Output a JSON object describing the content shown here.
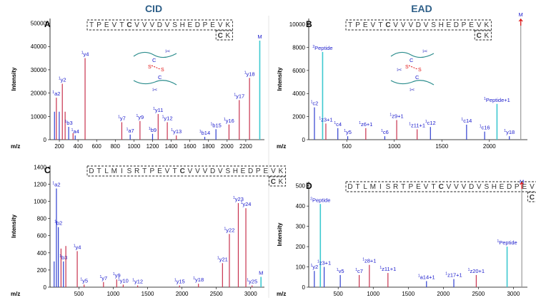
{
  "column_titles": {
    "left": "CID",
    "right": "EAD"
  },
  "colors": {
    "b_ion": "#2f3fd0",
    "y_ion": "#c8324e",
    "precursor": "#3ec9d0",
    "other": "#9a9a9a",
    "cys": "#e06a10",
    "label": "#1a1acc",
    "arrow": "#e01010"
  },
  "chart_data": [
    {
      "panel": "A",
      "type": "bar",
      "title": "",
      "sequence": "TPEVTCVVVDVSHEDPEVK",
      "second_sequence": "CK",
      "xlabel": "m/z",
      "ylabel": "Intensity",
      "xlim": [
        100,
        2400
      ],
      "ylim": [
        0,
        52000
      ],
      "xticks": [
        200,
        400,
        600,
        800,
        1000,
        1200,
        1400,
        1600,
        1800,
        2000,
        2200
      ],
      "yticks": [
        0,
        10000,
        20000,
        30000,
        40000,
        50000
      ],
      "peaks": [
        {
          "mz": 148,
          "intensity": 12000,
          "ion": "b"
        },
        {
          "mz": 168,
          "intensity": 18000,
          "ion": "y",
          "label": "a2",
          "charge": "1"
        },
        {
          "mz": 199,
          "intensity": 12000,
          "ion": "b"
        },
        {
          "mz": 232,
          "intensity": 24000,
          "ion": "y",
          "label": "y2",
          "charge": "1"
        },
        {
          "mz": 262,
          "intensity": 12000,
          "ion": "y"
        },
        {
          "mz": 300,
          "intensity": 5500,
          "ion": "b",
          "label": "b3",
          "charge": "1"
        },
        {
          "mz": 347,
          "intensity": 2800,
          "ion": "y"
        },
        {
          "mz": 370,
          "intensity": 1800,
          "ion": "b",
          "label": "a4",
          "charge": "1"
        },
        {
          "mz": 476,
          "intensity": 35000,
          "ion": "y",
          "label": "y4",
          "charge": "1"
        },
        {
          "mz": 870,
          "intensity": 7500,
          "ion": "y",
          "label": "y7",
          "charge": "1"
        },
        {
          "mz": 960,
          "intensity": 2200,
          "ion": "b",
          "label": "a7",
          "charge": "1"
        },
        {
          "mz": 1065,
          "intensity": 8000,
          "ion": "y",
          "label": "y9",
          "charge": "1"
        },
        {
          "mz": 1200,
          "intensity": 2500,
          "ion": "b",
          "label": "b9",
          "charge": "1"
        },
        {
          "mz": 1260,
          "intensity": 11000,
          "ion": "y",
          "label": "y11",
          "charge": "1"
        },
        {
          "mz": 1358,
          "intensity": 7500,
          "ion": "y",
          "label": "y12",
          "charge": "1"
        },
        {
          "mz": 1455,
          "intensity": 1800,
          "ion": "y",
          "label": "y13",
          "charge": "1"
        },
        {
          "mz": 1760,
          "intensity": 1200,
          "ion": "b",
          "label": "b14",
          "charge": "1"
        },
        {
          "mz": 1880,
          "intensity": 4500,
          "ion": "b",
          "label": "b15",
          "charge": "1"
        },
        {
          "mz": 2020,
          "intensity": 6500,
          "ion": "y",
          "label": "y16",
          "charge": "1"
        },
        {
          "mz": 2130,
          "intensity": 17000,
          "ion": "y",
          "label": "y17",
          "charge": "1"
        },
        {
          "mz": 2240,
          "intensity": 26500,
          "ion": "y",
          "label": "y18",
          "charge": "1"
        },
        {
          "mz": 2350,
          "intensity": 42500,
          "ion": "precursor",
          "label": "M"
        }
      ]
    },
    {
      "panel": "B",
      "type": "bar",
      "title": "",
      "sequence": "TPEVTCVVVDVSHEDPEVK",
      "second_sequence": "CK",
      "xlabel": "m/z",
      "ylabel": "Intensity",
      "xlim": [
        100,
        2400
      ],
      "ylim": [
        0,
        10500
      ],
      "xticks": [
        500,
        1000,
        1500,
        2000
      ],
      "yticks": [
        0,
        2000,
        4000,
        6000,
        8000,
        10000
      ],
      "peaks": [
        {
          "mz": 160,
          "intensity": 2800,
          "ion": "b",
          "label": "c2",
          "charge": "1"
        },
        {
          "mz": 246,
          "intensity": 7600,
          "ion": "precursor",
          "label": "Peptide",
          "charge": "2"
        },
        {
          "mz": 280,
          "intensity": 1400,
          "ion": "y",
          "label": "z3+1",
          "charge": "1"
        },
        {
          "mz": 406,
          "intensity": 1000,
          "ion": "b",
          "label": "c4",
          "charge": "1"
        },
        {
          "mz": 510,
          "intensity": 300,
          "ion": "b",
          "label": "y5",
          "charge": "1"
        },
        {
          "mz": 700,
          "intensity": 1000,
          "ion": "y",
          "label": "z6+1",
          "charge": "1"
        },
        {
          "mz": 900,
          "intensity": 300,
          "ion": "b",
          "label": "c6",
          "charge": "1"
        },
        {
          "mz": 1025,
          "intensity": 1700,
          "ion": "y",
          "label": "z9+1",
          "charge": "1"
        },
        {
          "mz": 1240,
          "intensity": 900,
          "ion": "y",
          "label": "z11+1",
          "charge": "1"
        },
        {
          "mz": 1380,
          "intensity": 1100,
          "ion": "b",
          "label": "c12",
          "charge": "1"
        },
        {
          "mz": 1760,
          "intensity": 1300,
          "ion": "b",
          "label": "c14",
          "charge": "1"
        },
        {
          "mz": 1950,
          "intensity": 700,
          "ion": "b",
          "label": "c16",
          "charge": "1"
        },
        {
          "mz": 2080,
          "intensity": 3100,
          "ion": "precursor",
          "label": "Peptide+1",
          "charge": "1"
        },
        {
          "mz": 2210,
          "intensity": 300,
          "ion": "b",
          "label": "y18",
          "charge": "1"
        },
        {
          "mz": 2330,
          "intensity": 10500,
          "ion": "other",
          "label": "M"
        }
      ]
    },
    {
      "panel": "C",
      "type": "bar",
      "title": "",
      "sequence": "DTLMISRTPEVTCVVVDVSHEDPEVK",
      "second_sequence": "CK",
      "xlabel": "m/z",
      "ylabel": "Intensity",
      "xlim": [
        80,
        3200
      ],
      "ylim": [
        0,
        1420
      ],
      "xticks": [
        500,
        1000,
        1500,
        2000,
        2500,
        3000
      ],
      "yticks": [
        0,
        200,
        400,
        600,
        800,
        1000,
        1200,
        1400
      ],
      "peaks": [
        {
          "mz": 140,
          "intensity": 300,
          "ion": "b"
        },
        {
          "mz": 173,
          "intensity": 1150,
          "ion": "b",
          "label": "a2",
          "charge": "1"
        },
        {
          "mz": 201,
          "intensity": 700,
          "ion": "b",
          "label": "b2",
          "charge": "1"
        },
        {
          "mz": 240,
          "intensity": 450,
          "ion": "y"
        },
        {
          "mz": 275,
          "intensity": 300,
          "ion": "b",
          "label": "b3",
          "charge": "1"
        },
        {
          "mz": 310,
          "intensity": 480,
          "ion": "y"
        },
        {
          "mz": 476,
          "intensity": 420,
          "ion": "y",
          "label": "y4",
          "charge": "1"
        },
        {
          "mz": 576,
          "intensity": 30,
          "ion": "y",
          "label": "y5",
          "charge": "1"
        },
        {
          "mz": 858,
          "intensity": 60,
          "ion": "y",
          "label": "y7",
          "charge": "1"
        },
        {
          "mz": 1050,
          "intensity": 90,
          "ion": "y",
          "label": "y9",
          "charge": "1"
        },
        {
          "mz": 1145,
          "intensity": 30,
          "ion": "y",
          "label": "y10",
          "charge": "1"
        },
        {
          "mz": 1355,
          "intensity": 20,
          "ion": "y",
          "label": "y12",
          "charge": "1"
        },
        {
          "mz": 1965,
          "intensity": 20,
          "ion": "y",
          "label": "y15",
          "charge": "1"
        },
        {
          "mz": 2240,
          "intensity": 40,
          "ion": "y",
          "label": "y18",
          "charge": "1"
        },
        {
          "mz": 2590,
          "intensity": 280,
          "ion": "y",
          "label": "y21",
          "charge": "1"
        },
        {
          "mz": 2690,
          "intensity": 620,
          "ion": "y",
          "label": "y22",
          "charge": "1"
        },
        {
          "mz": 2820,
          "intensity": 980,
          "ion": "y",
          "label": "y23",
          "charge": "1"
        },
        {
          "mz": 2930,
          "intensity": 920,
          "ion": "y",
          "label": "y24",
          "charge": "1"
        },
        {
          "mz": 3020,
          "intensity": 20,
          "ion": "y",
          "label": "y25",
          "charge": "1"
        },
        {
          "mz": 3150,
          "intensity": 120,
          "ion": "precursor",
          "label": "M"
        }
      ]
    },
    {
      "panel": "D",
      "type": "bar",
      "title": "",
      "sequence": "DTLMISRTPEVTCVVVDVSHEDPEVK",
      "second_sequence": "CK",
      "xlabel": "m/z",
      "ylabel": "Intensity",
      "xlim": [
        80,
        3200
      ],
      "ylim": [
        0,
        520
      ],
      "xticks": [
        500,
        1000,
        1500,
        2000,
        2500,
        3000
      ],
      "yticks": [
        0,
        100,
        200,
        300,
        400,
        500
      ],
      "peaks": [
        {
          "mz": 160,
          "intensity": 80,
          "ion": "b",
          "label": "y2",
          "charge": "1"
        },
        {
          "mz": 246,
          "intensity": 410,
          "ion": "precursor",
          "label": "Peptide",
          "charge": "2"
        },
        {
          "mz": 300,
          "intensity": 100,
          "ion": "b",
          "label": "z3+1",
          "charge": "1"
        },
        {
          "mz": 530,
          "intensity": 60,
          "ion": "b",
          "label": "v5",
          "charge": "1"
        },
        {
          "mz": 800,
          "intensity": 60,
          "ion": "y",
          "label": "c7",
          "charge": "1"
        },
        {
          "mz": 945,
          "intensity": 110,
          "ion": "y",
          "label": "z8+1",
          "charge": "1"
        },
        {
          "mz": 1210,
          "intensity": 70,
          "ion": "y",
          "label": "z11+1",
          "charge": "1"
        },
        {
          "mz": 1760,
          "intensity": 30,
          "ion": "b",
          "label": "a14+1",
          "charge": "1"
        },
        {
          "mz": 2150,
          "intensity": 40,
          "ion": "b",
          "label": "z17+1",
          "charge": "1"
        },
        {
          "mz": 2470,
          "intensity": 60,
          "ion": "y",
          "label": "z20+1",
          "charge": "1"
        },
        {
          "mz": 2910,
          "intensity": 200,
          "ion": "precursor",
          "label": "Peptide",
          "charge": "1"
        },
        {
          "mz": 3120,
          "intensity": 500,
          "ion": "other",
          "label": "M"
        }
      ]
    }
  ]
}
